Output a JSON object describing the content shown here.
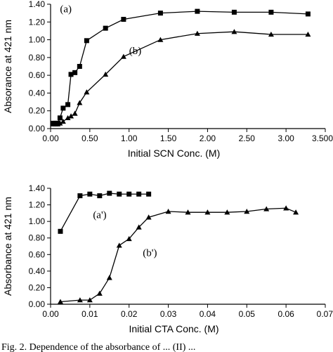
{
  "chart_data": [
    {
      "type": "line",
      "xlabel": "Initial SCN Conc. (M)",
      "ylabel": "Absorance at 421 nm",
      "xlim": [
        0,
        3.5
      ],
      "ylim": [
        0,
        1.4
      ],
      "x_ticks": [
        "0.00",
        "0.50",
        "1.00",
        "1.50",
        "2.00",
        "2.50",
        "3.00",
        "3.500"
      ],
      "y_ticks": [
        "0.00",
        "0.20",
        "0.40",
        "0.60",
        "0.80",
        "1.00",
        "1.20",
        "1.40"
      ],
      "grid": false,
      "series": [
        {
          "name": "(a)",
          "marker": "square",
          "x": [
            0.03,
            0.06,
            0.09,
            0.12,
            0.16,
            0.22,
            0.26,
            0.31,
            0.37,
            0.46,
            0.7,
            0.93,
            1.4,
            1.87,
            2.34,
            2.81,
            3.28
          ],
          "y": [
            0.06,
            0.06,
            0.06,
            0.12,
            0.23,
            0.27,
            0.61,
            0.63,
            0.7,
            0.99,
            1.13,
            1.23,
            1.3,
            1.32,
            1.31,
            1.31,
            1.29
          ]
        },
        {
          "name": "(b)",
          "marker": "triangle",
          "x": [
            0.03,
            0.06,
            0.09,
            0.12,
            0.16,
            0.22,
            0.26,
            0.31,
            0.37,
            0.46,
            0.7,
            0.93,
            1.4,
            1.87,
            2.34,
            2.81,
            3.28
          ],
          "y": [
            0.05,
            0.05,
            0.05,
            0.06,
            0.08,
            0.12,
            0.14,
            0.17,
            0.29,
            0.41,
            0.61,
            0.81,
            1.0,
            1.07,
            1.09,
            1.06,
            1.06
          ]
        }
      ]
    },
    {
      "type": "line",
      "xlabel": "Initial CTA Conc. (M)",
      "ylabel": "Absorbance at 421 nm",
      "xlim": [
        0,
        0.07
      ],
      "ylim": [
        0,
        1.4
      ],
      "x_ticks": [
        "0.00",
        "0.01",
        "0.02",
        "0.03",
        "0.04",
        "0.05",
        "0.06",
        "0.07"
      ],
      "y_ticks": [
        "0.00",
        "0.20",
        "0.40",
        "0.60",
        "0.80",
        "1.00",
        "1.20",
        "1.40"
      ],
      "grid": false,
      "series": [
        {
          "name": "(a')",
          "marker": "square",
          "x": [
            0.0025,
            0.0075,
            0.01,
            0.0125,
            0.015,
            0.0175,
            0.02,
            0.0225,
            0.025
          ],
          "y": [
            0.88,
            1.31,
            1.33,
            1.31,
            1.34,
            1.33,
            1.33,
            1.33,
            1.33
          ]
        },
        {
          "name": "(b')",
          "marker": "triangle",
          "x": [
            0.0025,
            0.0075,
            0.01,
            0.0125,
            0.015,
            0.0175,
            0.02,
            0.0225,
            0.025,
            0.03,
            0.035,
            0.04,
            0.045,
            0.05,
            0.055,
            0.06,
            0.0625
          ],
          "y": [
            0.03,
            0.05,
            0.05,
            0.13,
            0.32,
            0.71,
            0.79,
            0.93,
            1.05,
            1.12,
            1.11,
            1.11,
            1.11,
            1.12,
            1.15,
            1.16,
            1.11
          ]
        }
      ]
    }
  ],
  "caption": "Fig. 2. Dependence of the absorbance of ... (II) ..."
}
